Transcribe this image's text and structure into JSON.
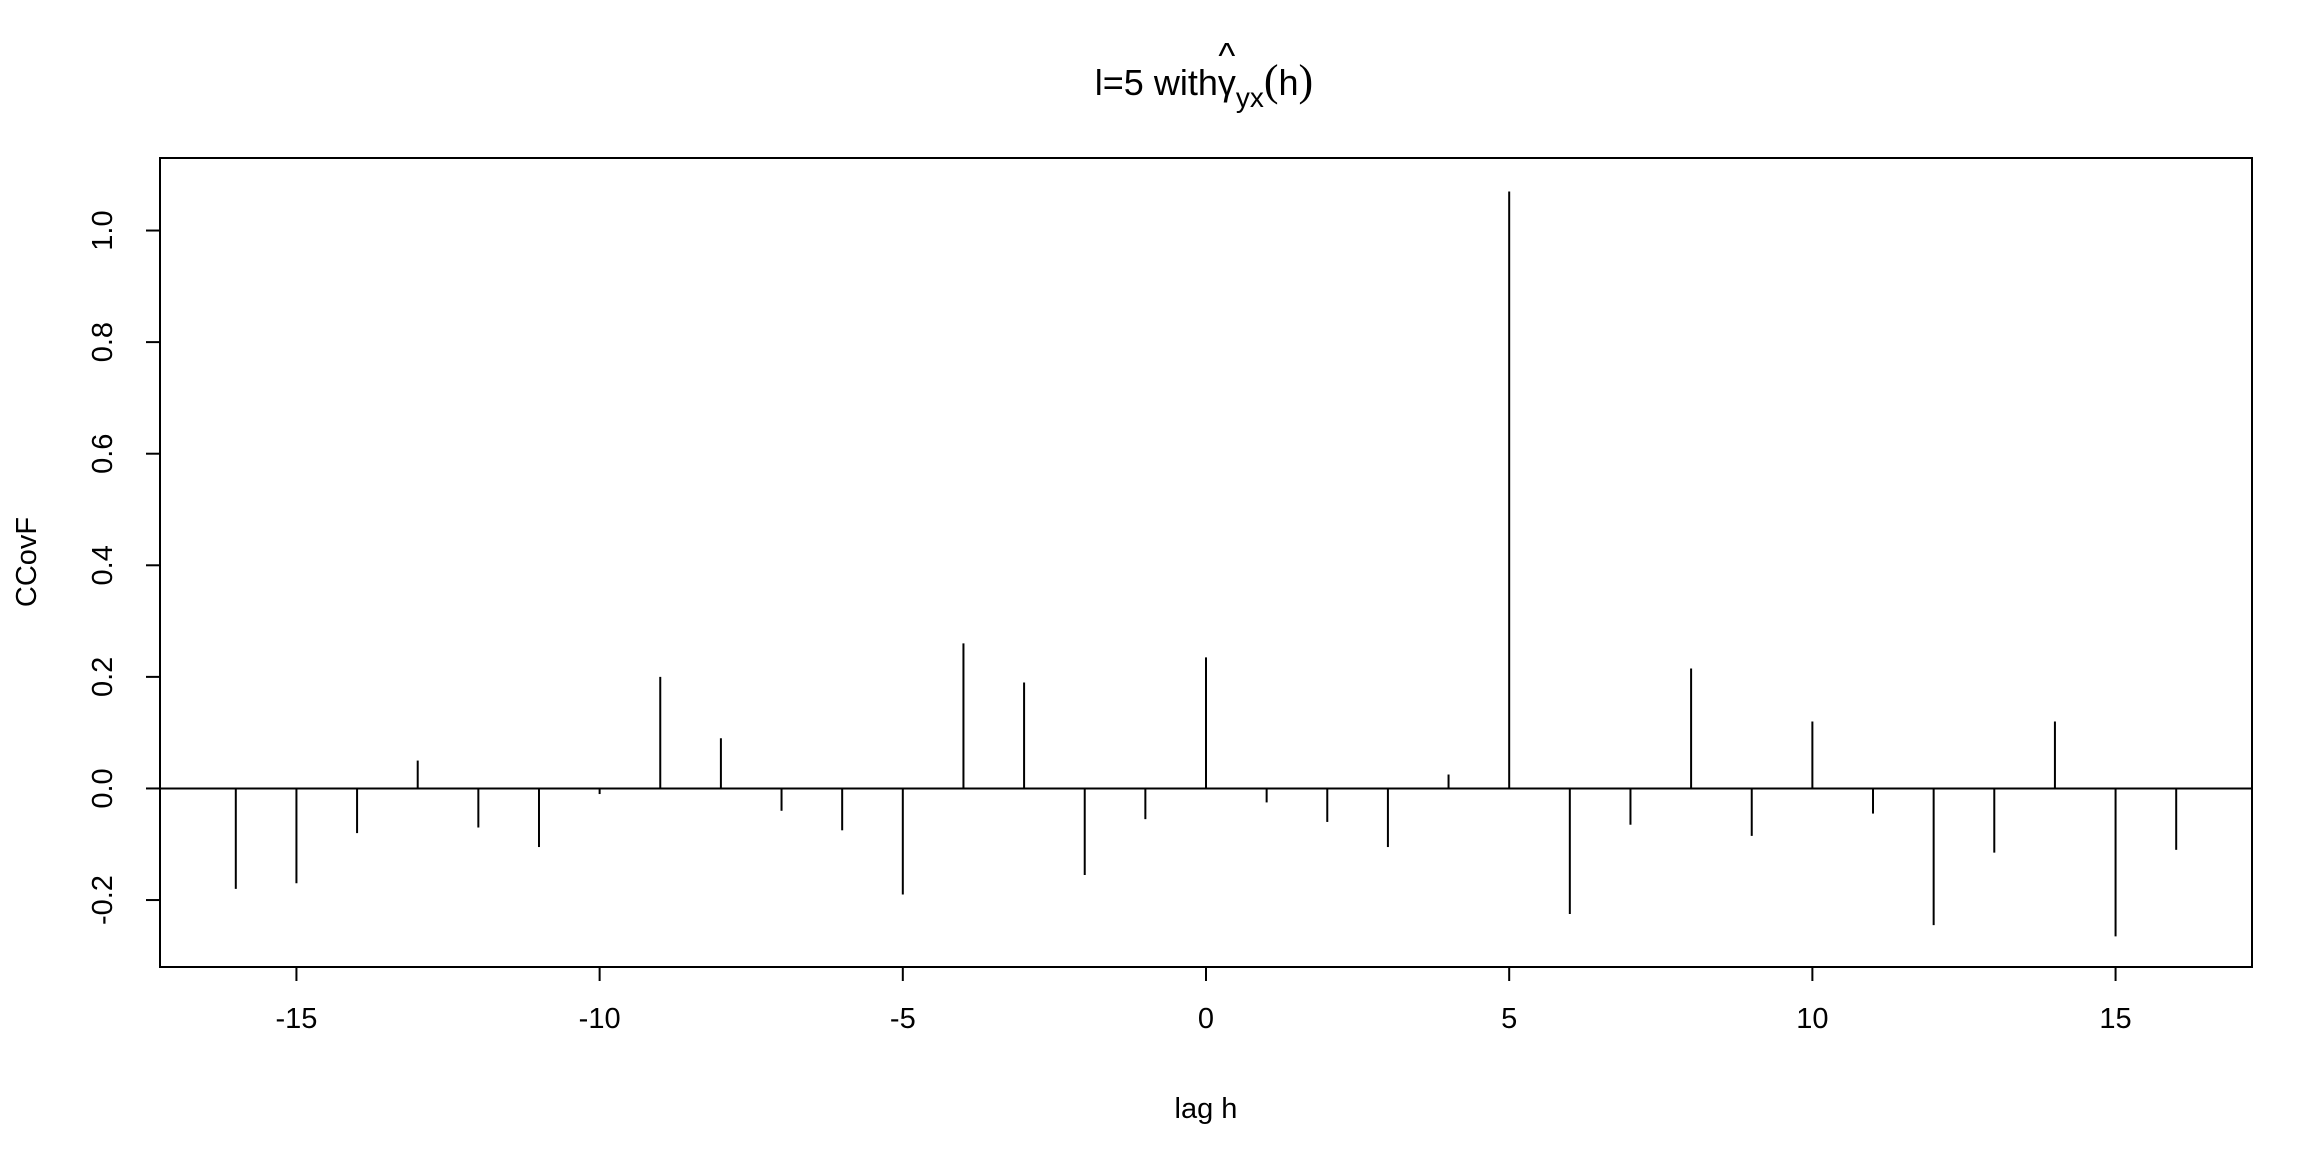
{
  "chart_data": {
    "type": "bar",
    "title": {
      "prefix": "l=5 with",
      "hat": "^",
      "symbol": "γ",
      "subscript": "yx",
      "open_paren": "(",
      "arg": "h",
      "close_paren": ")"
    },
    "xlabel": "lag h",
    "ylabel": "CCovF",
    "xlim": [
      -17.25,
      17.25
    ],
    "ylim": [
      -0.32,
      1.13
    ],
    "x_ticks": [
      -15,
      -10,
      -5,
      0,
      5,
      10,
      15
    ],
    "x_tick_labels": [
      "-15",
      "-10",
      "-5",
      "0",
      "5",
      "10",
      "15"
    ],
    "y_ticks": [
      -0.2,
      0.0,
      0.2,
      0.4,
      0.6,
      0.8,
      1.0
    ],
    "y_tick_labels": [
      "-0.2",
      "0.0",
      "0.2",
      "0.4",
      "0.6",
      "0.8",
      "1.0"
    ],
    "zero_line": true,
    "grid": false,
    "series": [
      {
        "x": [
          -16,
          -15,
          -14,
          -13,
          -12,
          -11,
          -10,
          -9,
          -8,
          -7,
          -6,
          -5,
          -4,
          -3,
          -2,
          -1,
          0,
          1,
          2,
          3,
          4,
          5,
          6,
          7,
          8,
          9,
          10,
          11,
          12,
          13,
          14,
          15,
          16
        ],
        "values": [
          -0.18,
          -0.17,
          -0.08,
          0.05,
          -0.07,
          -0.105,
          -0.01,
          0.2,
          0.09,
          -0.04,
          -0.075,
          -0.19,
          0.26,
          0.19,
          -0.155,
          -0.055,
          0.235,
          -0.025,
          -0.06,
          -0.105,
          0.025,
          1.07,
          -0.225,
          -0.065,
          0.215,
          -0.085,
          0.12,
          -0.045,
          -0.245,
          -0.115,
          0.12,
          -0.265,
          -0.11
        ]
      }
    ],
    "colors": {
      "line": "#000000",
      "background": "#ffffff"
    }
  }
}
